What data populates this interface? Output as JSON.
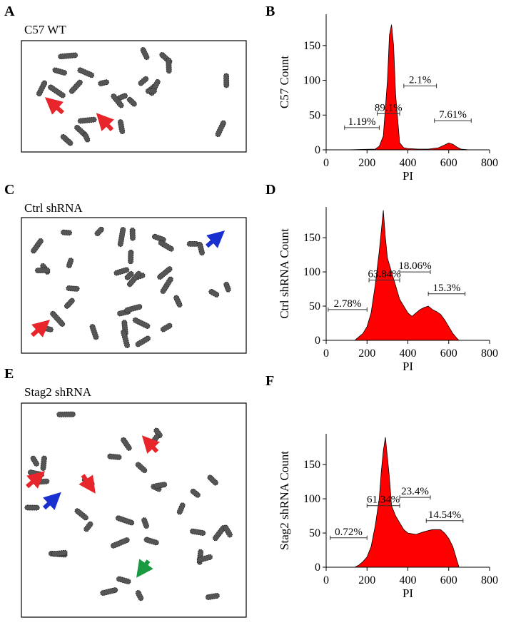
{
  "panels": [
    {
      "letter": "A",
      "label": "C57 WT"
    },
    {
      "letter": "C",
      "label": "Ctrl shRNA"
    },
    {
      "letter": "E",
      "label": "Stag2 shRNA"
    }
  ],
  "chart_data": [
    {
      "type": "area",
      "letter": "B",
      "ylabel": "C57 Count",
      "xlabel": "PI",
      "color": "#ff0000",
      "xlim": [
        0,
        800
      ],
      "xticks": [
        0,
        200,
        400,
        600,
        800
      ],
      "ylim": [
        0,
        195
      ],
      "yticks": [
        0,
        50,
        100,
        150
      ],
      "x": [
        100,
        240,
        260,
        280,
        300,
        310,
        320,
        330,
        340,
        360,
        380,
        400,
        450,
        500,
        550,
        580,
        600,
        620,
        640,
        660,
        700
      ],
      "values": [
        0,
        1,
        5,
        20,
        100,
        165,
        180,
        150,
        80,
        10,
        3,
        2,
        1,
        1,
        3,
        7,
        10,
        8,
        4,
        1,
        0
      ],
      "gates": [
        {
          "label": "1.19%",
          "x": [
            90,
            260
          ],
          "y": 32
        },
        {
          "label": "89.1%",
          "x": [
            250,
            360
          ],
          "y": 52
        },
        {
          "label": "2.1%",
          "x": [
            380,
            540
          ],
          "y": 92
        },
        {
          "label": "7.61%",
          "x": [
            530,
            710
          ],
          "y": 42
        }
      ]
    },
    {
      "type": "area",
      "letter": "D",
      "ylabel": "Ctrl shRNA Count",
      "xlabel": "PI",
      "color": "#ff0000",
      "xlim": [
        0,
        800
      ],
      "xticks": [
        0,
        200,
        400,
        600,
        800
      ],
      "ylim": [
        0,
        195
      ],
      "yticks": [
        0,
        50,
        100,
        150
      ],
      "x": [
        140,
        160,
        180,
        200,
        220,
        240,
        260,
        270,
        280,
        290,
        300,
        320,
        340,
        360,
        380,
        400,
        420,
        440,
        460,
        480,
        500,
        520,
        540,
        560,
        580,
        600,
        620,
        640,
        650
      ],
      "values": [
        0,
        5,
        10,
        20,
        40,
        80,
        130,
        160,
        190,
        150,
        120,
        100,
        80,
        60,
        50,
        40,
        35,
        40,
        45,
        48,
        50,
        45,
        42,
        38,
        30,
        20,
        10,
        3,
        0
      ],
      "gates": [
        {
          "label": "2.78%",
          "x": [
            10,
            200
          ],
          "y": 45
        },
        {
          "label": "63.84%",
          "x": [
            210,
            360
          ],
          "y": 88
        },
        {
          "label": "18.06%",
          "x": [
            360,
            510
          ],
          "y": 100
        },
        {
          "label": "15.3%",
          "x": [
            500,
            680
          ],
          "y": 68
        }
      ]
    },
    {
      "type": "area",
      "letter": "F",
      "ylabel": "Stag2 shRNA Count",
      "xlabel": "PI",
      "color": "#ff0000",
      "xlim": [
        0,
        800
      ],
      "xticks": [
        0,
        200,
        400,
        600,
        800
      ],
      "ylim": [
        0,
        195
      ],
      "yticks": [
        0,
        50,
        100,
        150
      ],
      "x": [
        140,
        160,
        180,
        200,
        220,
        240,
        260,
        270,
        280,
        290,
        300,
        310,
        320,
        340,
        360,
        380,
        400,
        440,
        480,
        520,
        560,
        580,
        600,
        620,
        640,
        650
      ],
      "values": [
        0,
        3,
        8,
        15,
        30,
        60,
        100,
        140,
        170,
        190,
        160,
        130,
        90,
        75,
        65,
        55,
        50,
        48,
        52,
        55,
        55,
        50,
        42,
        30,
        10,
        0
      ],
      "gates": [
        {
          "label": "0.72%",
          "x": [
            20,
            200
          ],
          "y": 43
        },
        {
          "label": "61.34%",
          "x": [
            200,
            360
          ],
          "y": 90
        },
        {
          "label": "23.4%",
          "x": [
            360,
            510
          ],
          "y": 102
        },
        {
          "label": "14.54%",
          "x": [
            490,
            670
          ],
          "y": 68
        }
      ]
    }
  ]
}
